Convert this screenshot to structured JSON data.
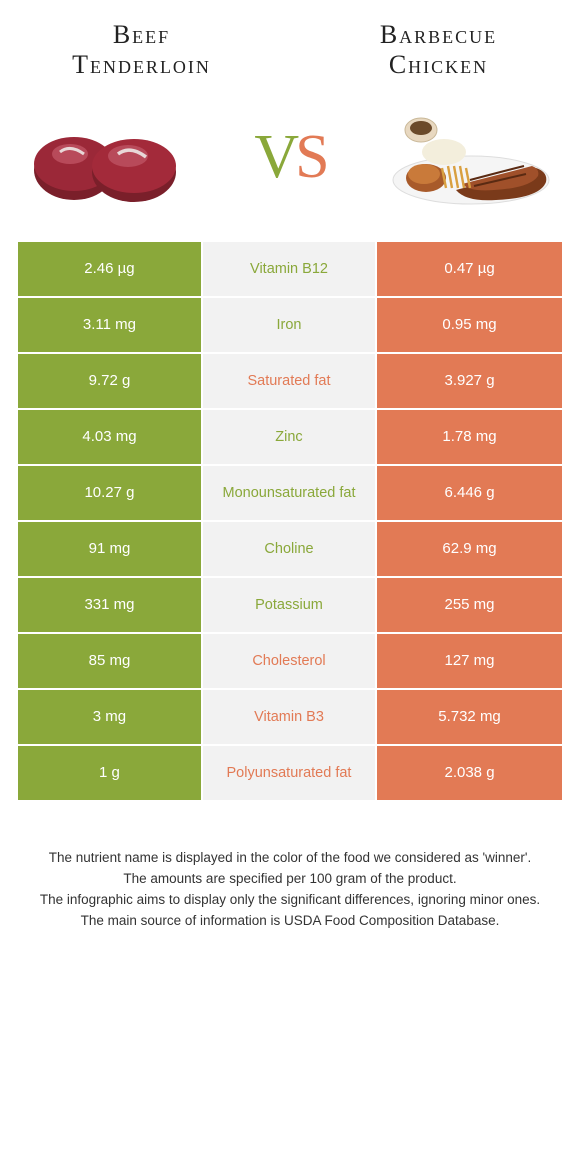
{
  "food_left": {
    "title": "Beef\nTenderloin",
    "color": "#8aa83a"
  },
  "food_right": {
    "title": "Barbecue\nChicken",
    "color": "#e27a55"
  },
  "vs": {
    "v": "V",
    "s": "S"
  },
  "colors": {
    "left_bg": "#8aa83a",
    "right_bg": "#e27a55",
    "mid_bg": "#f2f2f2",
    "label_green": "#8aa83a",
    "label_orange": "#e27a55",
    "body_bg": "#ffffff"
  },
  "rows": [
    {
      "left": "2.46 µg",
      "label": "Vitamin B12",
      "right": "0.47 µg",
      "winner": "left"
    },
    {
      "left": "3.11 mg",
      "label": "Iron",
      "right": "0.95 mg",
      "winner": "left"
    },
    {
      "left": "9.72 g",
      "label": "Saturated fat",
      "right": "3.927 g",
      "winner": "right"
    },
    {
      "left": "4.03 mg",
      "label": "Zinc",
      "right": "1.78 mg",
      "winner": "left"
    },
    {
      "left": "10.27 g",
      "label": "Monounsaturated fat",
      "right": "6.446 g",
      "winner": "left"
    },
    {
      "left": "91 mg",
      "label": "Choline",
      "right": "62.9 mg",
      "winner": "left"
    },
    {
      "left": "331 mg",
      "label": "Potassium",
      "right": "255 mg",
      "winner": "left"
    },
    {
      "left": "85 mg",
      "label": "Cholesterol",
      "right": "127 mg",
      "winner": "right"
    },
    {
      "left": "3 mg",
      "label": "Vitamin B3",
      "right": "5.732 mg",
      "winner": "right"
    },
    {
      "left": "1 g",
      "label": "Polyunsaturated fat",
      "right": "2.038 g",
      "winner": "right"
    }
  ],
  "footer": [
    "The nutrient name is displayed in the color of the food we considered as 'winner'.",
    "The amounts are specified per 100 gram of the product.",
    "The infographic aims to display only the significant differences, ignoring minor ones.",
    "The main source of information is USDA Food Composition Database."
  ]
}
